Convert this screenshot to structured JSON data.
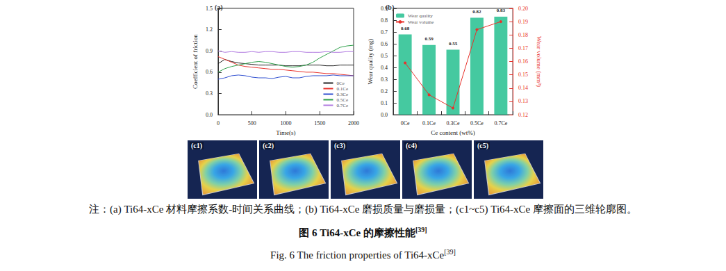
{
  "chart_data": [
    {
      "type": "line",
      "panel": "(a)",
      "x_label": "Time(s)",
      "y_label": "Coefficient of friction",
      "x": [
        0,
        100,
        200,
        300,
        400,
        500,
        600,
        700,
        800,
        900,
        1000,
        1100,
        1200,
        1300,
        1400,
        1500,
        1600,
        1700,
        1800,
        1900,
        2000
      ],
      "series": [
        {
          "name": "0Ce",
          "color": "#222222",
          "values": [
            0.72,
            0.78,
            0.75,
            0.73,
            0.72,
            0.71,
            0.7,
            0.7,
            0.7,
            0.7,
            0.69,
            0.69,
            0.69,
            0.7,
            0.7,
            0.7,
            0.69,
            0.69,
            0.7,
            0.7,
            0.7
          ]
        },
        {
          "name": "0.1Ce",
          "color": "#e8322c",
          "values": [
            0.82,
            0.78,
            0.74,
            0.7,
            0.68,
            0.67,
            0.66,
            0.65,
            0.64,
            0.64,
            0.63,
            0.62,
            0.61,
            0.6,
            0.6,
            0.59,
            0.58,
            0.58,
            0.57,
            0.56,
            0.55
          ]
        },
        {
          "name": "0.3Ce",
          "color": "#2f4fd0",
          "values": [
            0.5,
            0.52,
            0.55,
            0.56,
            0.55,
            0.53,
            0.52,
            0.52,
            0.51,
            0.53,
            0.54,
            0.52,
            0.52,
            0.54,
            0.55,
            0.55,
            0.55,
            0.56,
            0.55,
            0.55,
            0.55
          ]
        },
        {
          "name": "0.5Ce",
          "color": "#2ea04a",
          "values": [
            0.6,
            0.65,
            0.68,
            0.7,
            0.72,
            0.74,
            0.75,
            0.74,
            0.72,
            0.7,
            0.68,
            0.67,
            0.68,
            0.7,
            0.74,
            0.8,
            0.85,
            0.9,
            0.95,
            0.97,
            0.98
          ]
        },
        {
          "name": "0.7Ce",
          "color": "#b07ae0",
          "values": [
            0.9,
            0.88,
            0.89,
            0.88,
            0.88,
            0.89,
            0.88,
            0.89,
            0.89,
            0.88,
            0.88,
            0.89,
            0.89,
            0.88,
            0.88,
            0.88,
            0.89,
            0.88,
            0.88,
            0.89,
            0.89
          ]
        }
      ],
      "xlim": [
        0,
        2000
      ],
      "xticks": [
        0,
        500,
        1000,
        1500,
        2000
      ],
      "ylim": [
        0,
        1.5
      ],
      "yticks": [
        {
          "value": 0,
          "label": "0.0"
        },
        0.3,
        0.6,
        0.9,
        1.2,
        1.5
      ],
      "grid": false,
      "legend": "lower right"
    },
    {
      "type": "bar",
      "panel": "(b)",
      "x_label": "Ce content (wt%)",
      "y_label": "Wear quality (mg)",
      "y2_label": "Wear volume (mm³)",
      "categories": [
        "0Ce",
        "0.1Ce",
        "0.3Ce",
        "0.5Ce",
        "0.7Ce"
      ],
      "series": [
        {
          "name": "Wear quality",
          "type": "bar",
          "color": "#45c9a0",
          "values": [
            0.68,
            0.59,
            0.55,
            0.82,
            0.83
          ],
          "data_labels": true
        },
        {
          "name": "Wear volume",
          "type": "line",
          "axis": "y2",
          "color": "#e8322c",
          "marker": "circle",
          "values": [
            0.159,
            0.135,
            0.125,
            0.184,
            0.19
          ]
        }
      ],
      "ylim": [
        0,
        0.9
      ],
      "yticks": [
        {
          "value": 0,
          "label": "0.0"
        },
        0.1,
        0.2,
        0.3,
        0.4,
        0.5,
        0.6,
        0.7,
        0.8,
        0.9
      ],
      "y2lim": [
        0.12,
        0.2
      ],
      "y2ticks": [
        0.12,
        0.13,
        0.14,
        0.15,
        0.16,
        0.17,
        0.18,
        0.19,
        {
          "value": 0.2,
          "label": "0.20"
        }
      ],
      "grid": false,
      "legend": "upper left"
    }
  ],
  "profiles": {
    "labels": [
      "(c1)",
      "(c2)",
      "(c3)",
      "(c4)",
      "(c5)"
    ]
  },
  "caption": {
    "note": "注：(a) Ti64-xCe 材料摩擦系数-时间关系曲线；(b) Ti64-xCe 磨损质量与磨损量；(c1~c5) Ti64-xCe 摩擦面的三维轮廓图。",
    "title_cn": "图 6 Ti64-xCe 的摩擦性能",
    "title_en": "Fig. 6    The friction properties of Ti64-xCe",
    "ref": "[39]"
  }
}
